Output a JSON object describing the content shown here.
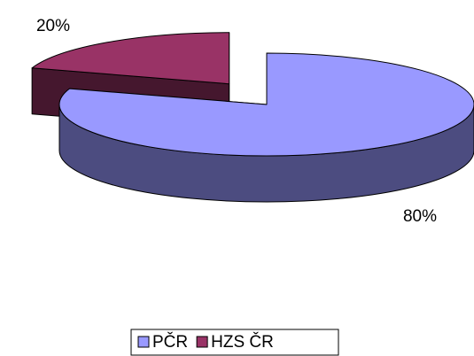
{
  "chart_data": {
    "type": "pie3d",
    "categories": [
      "PČR",
      "HZS ČR"
    ],
    "values": [
      80,
      20
    ],
    "value_labels": [
      "80%",
      "20%"
    ],
    "colors": [
      "#9999ff",
      "#993366"
    ],
    "legend": "bottom"
  }
}
